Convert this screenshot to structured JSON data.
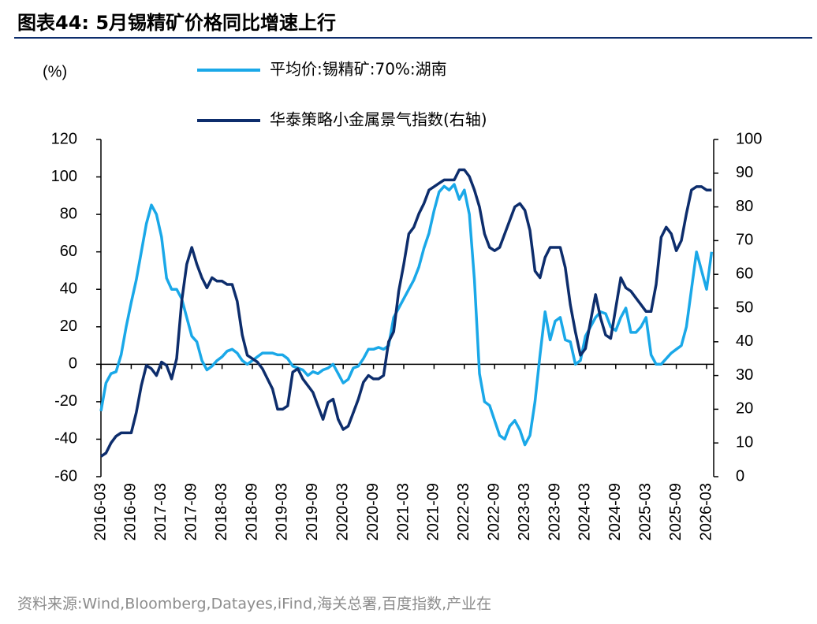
{
  "chart_data": {
    "type": "line",
    "title": "图表44:  5月锡精矿价格同比增速上行",
    "source": "资料来源:Wind,Bloomberg,Datayes,iFind,海关总署,百度指数,产业在",
    "y_label": "(%)",
    "categories": [
      "2016-03",
      null,
      null,
      null,
      null,
      null,
      "2016-09",
      null,
      null,
      null,
      null,
      null,
      "2017-03",
      null,
      null,
      null,
      null,
      null,
      "2017-09",
      null,
      null,
      null,
      null,
      null,
      "2018-03",
      null,
      null,
      null,
      null,
      null,
      "2018-09",
      null,
      null,
      null,
      null,
      null,
      "2019-03",
      null,
      null,
      null,
      null,
      null,
      "2019-09",
      null,
      null,
      null,
      null,
      null,
      "2020-03",
      null,
      null,
      null,
      null,
      null,
      "2020-09",
      null,
      null,
      null,
      null,
      null,
      "2021-03",
      null,
      null,
      null,
      null,
      null,
      "2021-09",
      null,
      null,
      null,
      null,
      null,
      "2022-03",
      null,
      null,
      null,
      null,
      null,
      "2022-09",
      null,
      null,
      null,
      null,
      null,
      "2023-03",
      null,
      null,
      null,
      null,
      null,
      "2023-09",
      null,
      null,
      null,
      null,
      null,
      "2024-03",
      null,
      null,
      null,
      null,
      null,
      "2024-09",
      null,
      null,
      null,
      null,
      null,
      "2025-03",
      null,
      null,
      null,
      null,
      null,
      "2025-09",
      null,
      null,
      null,
      null,
      null,
      "2026-03",
      null
    ],
    "series": [
      {
        "name": "平均价:锡精矿:70%:湖南",
        "color": "#1aa8e8",
        "values": [
          -25,
          -10,
          -5,
          -4,
          5,
          20,
          33,
          45,
          60,
          75,
          85,
          80,
          68,
          46,
          40,
          40,
          35,
          25,
          15,
          12,
          2,
          -3,
          -1,
          2,
          4,
          7,
          8,
          6,
          2,
          0,
          2,
          4,
          6,
          6,
          6,
          5,
          5,
          3,
          -1,
          -2,
          -3,
          -6,
          -4,
          -5,
          -3,
          -2,
          0,
          -5,
          -10,
          -8,
          -2,
          -1,
          3,
          8,
          8,
          9,
          8,
          10,
          25,
          30,
          35,
          40,
          45,
          52,
          62,
          70,
          82,
          92,
          95,
          93,
          96,
          88,
          93,
          80,
          45,
          -5,
          -20,
          -22,
          -30,
          -38,
          -40,
          -33,
          -30,
          -35,
          -43,
          -38,
          -20,
          5,
          28,
          13,
          23,
          25,
          13,
          12,
          0,
          2,
          15,
          20,
          25,
          28,
          27,
          20,
          18,
          25,
          30,
          17,
          17,
          20,
          25,
          5,
          0,
          0,
          3,
          6,
          8,
          10,
          20,
          40,
          60,
          50,
          40,
          60
        ]
      },
      {
        "name": "华泰策略小金属景气指数(右轴)",
        "color": "#0d2d6c",
        "axis": "y2",
        "values": [
          6,
          7,
          10,
          12,
          13,
          13,
          13,
          19,
          27,
          33,
          32,
          30,
          34,
          33,
          29,
          35,
          52,
          63,
          68,
          63,
          59,
          56,
          59,
          58,
          58,
          57,
          57,
          52,
          42,
          36,
          35,
          34,
          32,
          29,
          26,
          20,
          20,
          21,
          31,
          32,
          29,
          27,
          25,
          21,
          17,
          22,
          23,
          17,
          14,
          15,
          19,
          23,
          28,
          30,
          29,
          29,
          30,
          40,
          43,
          55,
          63,
          72,
          74,
          78,
          81,
          85,
          86,
          87,
          88,
          88,
          88,
          91,
          91,
          89,
          85,
          80,
          72,
          68,
          67,
          68,
          72,
          76,
          80,
          81,
          79,
          73,
          61,
          59,
          65,
          68,
          68,
          68,
          62,
          51,
          43,
          36,
          38,
          46,
          54,
          47,
          42,
          41,
          50,
          59,
          56,
          55,
          53,
          51,
          49,
          49,
          57,
          71,
          74,
          72,
          67,
          70,
          78,
          85,
          86,
          86,
          85,
          85
        ]
      }
    ],
    "ylim": [
      -60,
      120
    ],
    "yticks": [
      -60,
      -40,
      -20,
      0,
      20,
      40,
      60,
      80,
      100,
      120
    ],
    "y2lim": [
      0,
      100
    ],
    "y2ticks": [
      0,
      10,
      20,
      30,
      40,
      50,
      60,
      70,
      80,
      90,
      100
    ]
  }
}
